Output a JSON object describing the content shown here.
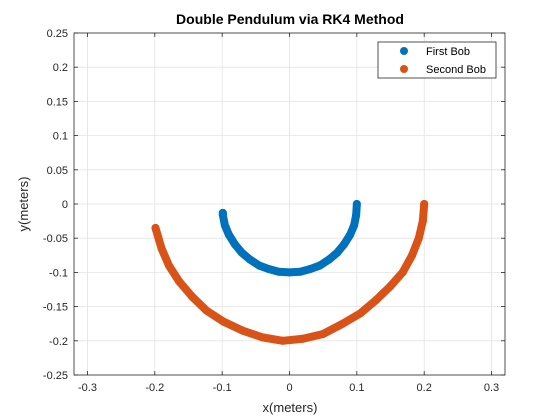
{
  "chart_data": {
    "type": "scatter",
    "title": "Double Pendulum via RK4 Method",
    "xlabel": "x(meters)",
    "ylabel": "y(meters)",
    "xlim": [
      -0.32,
      0.32
    ],
    "ylim": [
      -0.25,
      0.25
    ],
    "x_ticks": [
      -0.3,
      -0.2,
      -0.1,
      0,
      0.1,
      0.2,
      0.3
    ],
    "x_tick_labels": [
      "-0.3",
      "-0.2",
      "-0.1",
      "0",
      "0.1",
      "0.2",
      "0.3"
    ],
    "y_ticks": [
      0.25,
      0.2,
      0.15,
      0.1,
      0.05,
      0,
      -0.05,
      -0.1,
      -0.15,
      -0.2,
      -0.25
    ],
    "y_tick_labels": [
      "0.25",
      "0.2",
      "0.15",
      "0.1",
      "0.05",
      "0",
      "-0.05",
      "-0.1",
      "-0.15",
      "-0.2",
      "-0.25"
    ],
    "grid": true,
    "legend_position": "top-right",
    "series": [
      {
        "name": "First Bob",
        "color": "#0072BD",
        "x": [
          0.1,
          0.099,
          0.096,
          0.09,
          0.081,
          0.071,
          0.059,
          0.045,
          0.031,
          0.016,
          0,
          -0.016,
          -0.031,
          -0.045,
          -0.059,
          -0.071,
          -0.081,
          -0.09,
          -0.096,
          -0.099,
          -0.099
        ],
        "y": [
          0,
          -0.016,
          -0.031,
          -0.045,
          -0.059,
          -0.071,
          -0.081,
          -0.09,
          -0.095,
          -0.099,
          -0.1,
          -0.099,
          -0.095,
          -0.09,
          -0.081,
          -0.071,
          -0.059,
          -0.045,
          -0.031,
          -0.016,
          -0.013
        ]
      },
      {
        "name": "Second Bob",
        "color": "#D95319",
        "x": [
          0.2,
          0.198,
          0.192,
          0.182,
          0.168,
          0.15,
          0.129,
          0.105,
          0.079,
          0.05,
          0.02,
          -0.01,
          -0.04,
          -0.07,
          -0.098,
          -0.123,
          -0.145,
          -0.164,
          -0.179,
          -0.19,
          -0.196,
          -0.199
        ],
        "y": [
          0,
          -0.025,
          -0.05,
          -0.075,
          -0.1,
          -0.12,
          -0.14,
          -0.16,
          -0.175,
          -0.19,
          -0.197,
          -0.2,
          -0.195,
          -0.185,
          -0.172,
          -0.156,
          -0.135,
          -0.113,
          -0.09,
          -0.065,
          -0.045,
          -0.035
        ]
      }
    ]
  }
}
